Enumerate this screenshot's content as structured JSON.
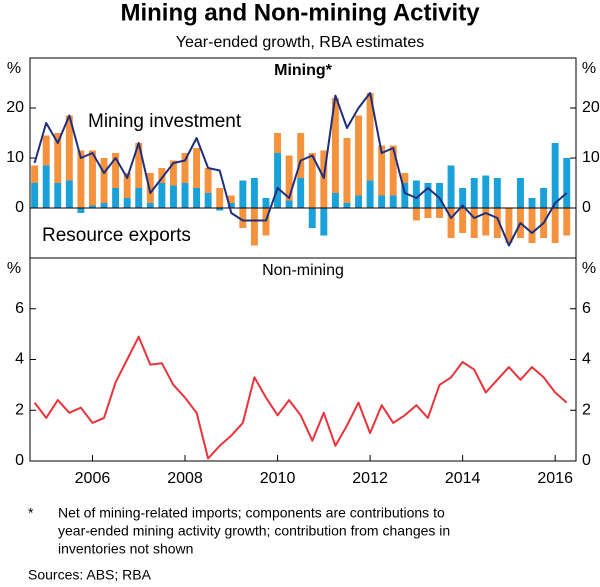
{
  "title": "Mining and Non-mining Activity",
  "subtitle": "Year-ended growth, RBA estimates",
  "footnote": {
    "marker": "*",
    "lines": [
      "Net of mining-related imports; components are contributions to",
      "year-ended mining activity growth; contribution from changes in",
      "inventories not shown"
    ]
  },
  "sources": "Sources: ABS; RBA",
  "chart_data": [
    {
      "type": "bar",
      "title": "Mining*",
      "y_unit": "%",
      "x": [
        2004.75,
        2005,
        2005.25,
        2005.5,
        2005.75,
        2006,
        2006.25,
        2006.5,
        2006.75,
        2007,
        2007.25,
        2007.5,
        2007.75,
        2008,
        2008.25,
        2008.5,
        2008.75,
        2009,
        2009.25,
        2009.5,
        2009.75,
        2010,
        2010.25,
        2010.5,
        2010.75,
        2011,
        2011.25,
        2011.5,
        2011.75,
        2012,
        2012.25,
        2012.5,
        2012.75,
        2013,
        2013.25,
        2013.5,
        2013.75,
        2014,
        2014.25,
        2014.5,
        2014.75,
        2015,
        2015.25,
        2015.5,
        2015.75,
        2016,
        2016.25
      ],
      "xlim": [
        2004.65,
        2016.45
      ],
      "ylim": [
        -10,
        30
      ],
      "yticks": [
        0,
        10,
        20
      ],
      "series": [
        {
          "name": "Resource exports",
          "color": "#1ba1d9",
          "values": [
            5,
            8.5,
            5,
            5.5,
            -1,
            0.5,
            1,
            4,
            2,
            4,
            1,
            5,
            4.5,
            5,
            4,
            3,
            -0.5,
            1,
            5.5,
            6,
            2,
            11,
            1.5,
            6,
            -4,
            -5.5,
            3,
            1,
            2.5,
            5.5,
            2.5,
            2.5,
            5,
            5.5,
            5,
            5,
            8.5,
            4,
            6,
            6.5,
            6,
            0,
            6,
            2,
            4,
            13,
            10
          ]
        },
        {
          "name": "Mining investment",
          "color": "#f5923e",
          "values": [
            3.5,
            6,
            10,
            13,
            11.5,
            11,
            9,
            7,
            5,
            9,
            6,
            3,
            5,
            6,
            8,
            5,
            4,
            1.5,
            -4,
            -7.5,
            -5.5,
            4,
            9,
            9,
            11,
            11.5,
            19,
            13,
            16,
            17.5,
            10,
            10,
            2,
            -2.5,
            -2,
            -2,
            -6,
            -5,
            -6,
            -5.5,
            -6,
            -7,
            -6,
            -7,
            -6,
            -7,
            -5.5
          ]
        },
        {
          "type": "line",
          "color": "#1f2f7d",
          "values": [
            9,
            17,
            13,
            18.5,
            10,
            11,
            7,
            10,
            6,
            13,
            3,
            6,
            9,
            9.5,
            14,
            8,
            7.5,
            -1,
            -2.5,
            -2.5,
            -2.5,
            4,
            2,
            9.5,
            10.5,
            6,
            22.5,
            16,
            20,
            23,
            11,
            12,
            3,
            2,
            4,
            2,
            -2,
            0.5,
            -2,
            -1,
            -2,
            -7.5,
            -3,
            -5,
            -3,
            1,
            3
          ]
        }
      ]
    },
    {
      "type": "line",
      "title": "Non-mining",
      "y_unit": "%",
      "x": [
        2004.75,
        2005,
        2005.25,
        2005.5,
        2005.75,
        2006,
        2006.25,
        2006.5,
        2006.75,
        2007,
        2007.25,
        2007.5,
        2007.75,
        2008,
        2008.25,
        2008.5,
        2008.75,
        2009,
        2009.25,
        2009.5,
        2009.75,
        2010,
        2010.25,
        2010.5,
        2010.75,
        2011,
        2011.25,
        2011.5,
        2011.75,
        2012,
        2012.25,
        2012.5,
        2012.75,
        2013,
        2013.25,
        2013.5,
        2013.75,
        2014,
        2014.25,
        2014.5,
        2014.75,
        2015,
        2015.25,
        2015.5,
        2015.75,
        2016,
        2016.25
      ],
      "xlim": [
        2004.65,
        2016.45
      ],
      "xticks": [
        2006,
        2008,
        2010,
        2012,
        2014,
        2016
      ],
      "ylim": [
        0,
        8
      ],
      "yticks": [
        0,
        2,
        4,
        6
      ],
      "series": [
        {
          "color": "#e8343b",
          "values": [
            2.3,
            1.7,
            2.4,
            1.9,
            2.1,
            1.5,
            1.7,
            3.1,
            4.0,
            4.9,
            3.8,
            3.85,
            3.0,
            2.5,
            1.9,
            0.1,
            0.6,
            1.0,
            1.5,
            3.3,
            2.5,
            1.8,
            2.4,
            1.8,
            0.8,
            1.9,
            0.6,
            1.4,
            2.3,
            1.1,
            2.2,
            1.5,
            1.8,
            2.2,
            1.7,
            3.0,
            3.3,
            3.9,
            3.6,
            2.7,
            3.2,
            3.7,
            3.2,
            3.7,
            3.3,
            2.7,
            2.3
          ]
        }
      ]
    }
  ]
}
